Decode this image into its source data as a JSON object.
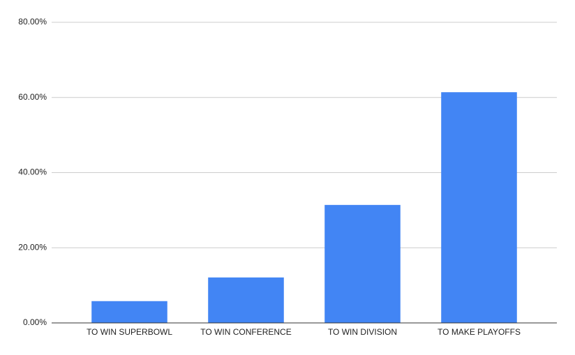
{
  "chart_data": {
    "type": "bar",
    "categories": [
      "TO WIN SUPERBOWL",
      "TO WIN CONFERENCE",
      "TO WIN DIVISION",
      "TO MAKE PLAYOFFS"
    ],
    "values": [
      5.8,
      12.1,
      31.4,
      61.4
    ],
    "color": "#4285f4",
    "ylim": [
      0,
      80
    ],
    "yticks": [
      {
        "value": 0,
        "label": "0.00%"
      },
      {
        "value": 20,
        "label": "20.00%"
      },
      {
        "value": 40,
        "label": "40.00%"
      },
      {
        "value": 60,
        "label": "60.00%"
      },
      {
        "value": 80,
        "label": "80.00%"
      }
    ],
    "grid": true
  }
}
